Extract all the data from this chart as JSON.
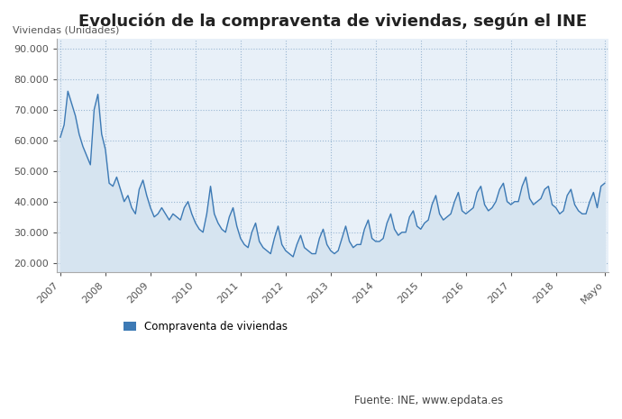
{
  "title": "Evolución de la compraventa de viviendas, según el INE",
  "ylabel": "Viviendas (Unidades)",
  "legend_label": "Compraventa de viviendas",
  "source_text": "Fuente: INE, www.epdata.es",
  "line_color": "#3d7ab5",
  "fill_color": "#d6e4f0",
  "background_color": "#e8f0f8",
  "ylim": [
    17000,
    93000
  ],
  "yticks": [
    20000,
    30000,
    40000,
    50000,
    60000,
    70000,
    80000,
    90000
  ],
  "values": [
    61000,
    65000,
    76000,
    72000,
    68000,
    62000,
    58000,
    55000,
    52000,
    70000,
    75000,
    62000,
    57000,
    46000,
    45000,
    48000,
    44000,
    40000,
    42000,
    38000,
    36000,
    44000,
    47000,
    42000,
    38000,
    35000,
    36000,
    38000,
    36000,
    34000,
    36000,
    35000,
    34000,
    38000,
    40000,
    36000,
    33000,
    31000,
    30000,
    36000,
    45000,
    36000,
    33000,
    31000,
    30000,
    35000,
    38000,
    32000,
    28000,
    26000,
    25000,
    30000,
    33000,
    27000,
    25000,
    24000,
    23000,
    28000,
    32000,
    26000,
    24000,
    23000,
    22000,
    26000,
    29000,
    25000,
    24000,
    23000,
    23000,
    28000,
    31000,
    26000,
    24000,
    23000,
    24000,
    28000,
    32000,
    27000,
    25000,
    26000,
    26000,
    31000,
    34000,
    28000,
    27000,
    27000,
    28000,
    33000,
    36000,
    31000,
    29000,
    30000,
    30000,
    35000,
    37000,
    32000,
    31000,
    33000,
    34000,
    39000,
    42000,
    36000,
    34000,
    35000,
    36000,
    40000,
    43000,
    37000,
    36000,
    37000,
    38000,
    43000,
    45000,
    39000,
    37000,
    38000,
    40000,
    44000,
    46000,
    40000,
    39000,
    40000,
    40000,
    45000,
    48000,
    41000,
    39000,
    40000,
    41000,
    44000,
    45000,
    39000,
    38000,
    36000,
    37000,
    42000,
    44000,
    39000,
    37000,
    36000,
    36000,
    40000,
    43000,
    38000,
    45000,
    46000
  ]
}
